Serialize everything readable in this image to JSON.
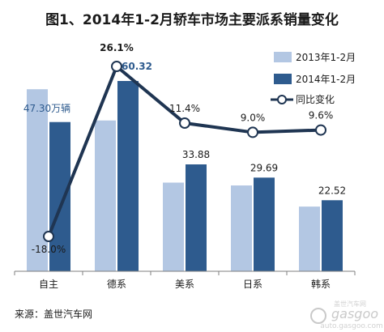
{
  "chart_data": {
    "type": "bar",
    "title": "图1、2014年1-2月轿车市场主要派系销量变化",
    "categories": [
      "自主",
      "德系",
      "美系",
      "日系",
      "韩系"
    ],
    "series": [
      {
        "name": "2013年1-2月",
        "values": [
          57.7,
          47.8,
          28.1,
          27.2,
          20.5
        ],
        "color": "#b3c7e3"
      },
      {
        "name": "2014年1-2月",
        "values": [
          47.3,
          60.32,
          33.88,
          29.69,
          22.52
        ],
        "color": "#2e5b8e"
      }
    ],
    "bar_labels": [
      "47.30万辆",
      "60.32",
      "33.88",
      "29.69",
      "22.52"
    ],
    "line_series": {
      "name": "同比变化",
      "values": [
        -18.0,
        26.1,
        11.4,
        9.0,
        9.6
      ],
      "labels": [
        "-18.0%",
        "26.1%",
        "11.4%",
        "9.0%",
        "9.6%"
      ],
      "color": "#1f3552"
    },
    "source": "来源：盖世汽车网",
    "watermark": {
      "brand": "gasgoo",
      "site": "auto.gasgoo.com",
      "tagline": "盖世汽车网"
    },
    "legend_position": "top-right",
    "grid": false
  }
}
